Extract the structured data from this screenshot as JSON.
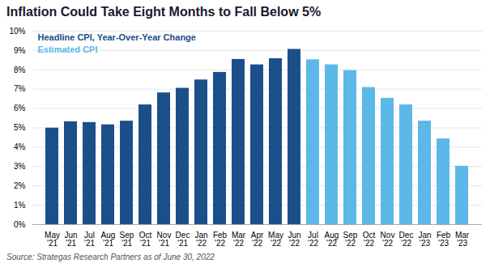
{
  "chart_data": {
    "type": "bar",
    "title": "Inflation Could Take Eight Months to Fall Below 5%",
    "annotations": [
      "Source: Strategas Research Partners as of June 30, 2022"
    ],
    "categories": [
      "May\n'21",
      "Jun\n'21",
      "Jul\n'21",
      "Aug\n'21",
      "Sep\n'21",
      "Oct\n'21",
      "Nov\n'21",
      "Dec\n'21",
      "Jan\n'22",
      "Feb\n'22",
      "Mar\n'22",
      "Apr\n'22",
      "May\n'22",
      "Jun\n'22",
      "Jul\n'22",
      "Aug\n'22",
      "Sep\n'22",
      "Oct\n'22",
      "Nov\n'22",
      "Dec\n'22",
      "Jan\n'23",
      "Feb\n'23",
      "Mar\n'23"
    ],
    "series": [
      {
        "name": "Headline CPI, Year-Over-Year Change",
        "color": "#1B4F8A",
        "values": [
          4.99,
          5.32,
          5.28,
          5.16,
          5.35,
          6.19,
          6.81,
          7.05,
          7.48,
          7.87,
          8.54,
          8.26,
          8.58,
          9.06,
          null,
          null,
          null,
          null,
          null,
          null,
          null,
          null,
          null
        ]
      },
      {
        "name": "Estimated CPI",
        "color": "#5BB8E8",
        "values": [
          null,
          null,
          null,
          null,
          null,
          null,
          null,
          null,
          null,
          null,
          null,
          null,
          null,
          null,
          8.52,
          8.26,
          7.96,
          7.09,
          6.53,
          6.19,
          5.35,
          4.43,
          3.02
        ]
      }
    ],
    "ylim": [
      0,
      10
    ],
    "yticks": [
      {
        "value": 0,
        "label": "0%"
      },
      {
        "value": 1,
        "label": "1%"
      },
      {
        "value": 2,
        "label": "2%"
      },
      {
        "value": 3,
        "label": "3%"
      },
      {
        "value": 4,
        "label": "4%"
      },
      {
        "value": 5,
        "label": "5%"
      },
      {
        "value": 6,
        "label": "6%"
      },
      {
        "value": 7,
        "label": "7%"
      },
      {
        "value": 8,
        "label": "8%"
      },
      {
        "value": 9,
        "label": "9%"
      },
      {
        "value": 10,
        "label": "10%"
      }
    ],
    "grid": true,
    "legend": "upper left"
  }
}
